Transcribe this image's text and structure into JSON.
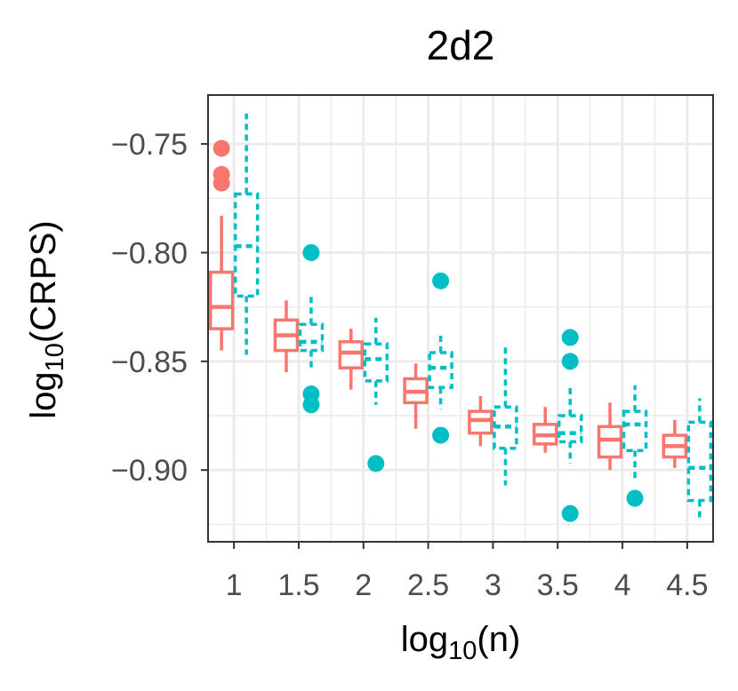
{
  "chart_data": {
    "type": "boxplot",
    "title": "2d2",
    "xlabel": "log10(n)",
    "ylabel": "log10(CRPS)",
    "xlabel_parts": {
      "base": "log",
      "sub": "10",
      "rest": "(n)"
    },
    "ylabel_parts": {
      "base": "log",
      "sub": "10",
      "rest": "(CRPS)"
    },
    "x_ticks": [
      1,
      1.5,
      2,
      2.5,
      3,
      3.5,
      4,
      4.5
    ],
    "x_tick_labels": [
      "1",
      "1.5",
      "2",
      "2.5",
      "3",
      "3.5",
      "4",
      "4.5"
    ],
    "y_ticks": [
      -0.75,
      -0.8,
      -0.85,
      -0.9
    ],
    "y_tick_labels": [
      "−0.75",
      "−0.80",
      "−0.85",
      "−0.90"
    ],
    "xlim": [
      0.8,
      4.7
    ],
    "ylim": [
      -0.933,
      -0.7275
    ],
    "grid": true,
    "series": [
      {
        "name": "series_1",
        "color": "#F8766D",
        "linestyle": "solid",
        "boxes": [
          {
            "x": 1.0,
            "whisker_low": -0.845,
            "q1": -0.835,
            "median": -0.825,
            "q3": -0.809,
            "whisker_high": -0.783,
            "outliers": [
              -0.752,
              -0.764,
              -0.768
            ]
          },
          {
            "x": 1.5,
            "whisker_low": -0.855,
            "q1": -0.845,
            "median": -0.838,
            "q3": -0.831,
            "whisker_high": -0.822,
            "outliers": []
          },
          {
            "x": 2.0,
            "whisker_low": -0.863,
            "q1": -0.853,
            "median": -0.846,
            "q3": -0.841,
            "whisker_high": -0.835,
            "outliers": []
          },
          {
            "x": 2.5,
            "whisker_low": -0.881,
            "q1": -0.869,
            "median": -0.864,
            "q3": -0.858,
            "whisker_high": -0.851,
            "outliers": []
          },
          {
            "x": 3.0,
            "whisker_low": -0.889,
            "q1": -0.883,
            "median": -0.877,
            "q3": -0.873,
            "whisker_high": -0.866,
            "outliers": []
          },
          {
            "x": 3.5,
            "whisker_low": -0.892,
            "q1": -0.888,
            "median": -0.884,
            "q3": -0.879,
            "whisker_high": -0.871,
            "outliers": []
          },
          {
            "x": 4.0,
            "whisker_low": -0.9,
            "q1": -0.894,
            "median": -0.886,
            "q3": -0.88,
            "whisker_high": -0.869,
            "outliers": []
          },
          {
            "x": 4.5,
            "whisker_low": -0.899,
            "q1": -0.894,
            "median": -0.889,
            "q3": -0.884,
            "whisker_high": -0.877,
            "outliers": []
          }
        ]
      },
      {
        "name": "series_2",
        "color": "#00BFC4",
        "linestyle": "dashed",
        "boxes": [
          {
            "x": 1.0,
            "whisker_low": -0.847,
            "q1": -0.82,
            "median": -0.797,
            "q3": -0.773,
            "whisker_high": -0.736,
            "outliers": []
          },
          {
            "x": 1.5,
            "whisker_low": -0.853,
            "q1": -0.845,
            "median": -0.841,
            "q3": -0.833,
            "whisker_high": -0.82,
            "outliers": [
              -0.8,
              -0.865,
              -0.87
            ]
          },
          {
            "x": 2.0,
            "whisker_low": -0.87,
            "q1": -0.859,
            "median": -0.849,
            "q3": -0.842,
            "whisker_high": -0.83,
            "outliers": [
              -0.897
            ]
          },
          {
            "x": 2.5,
            "whisker_low": -0.872,
            "q1": -0.862,
            "median": -0.853,
            "q3": -0.846,
            "whisker_high": -0.838,
            "outliers": [
              -0.813,
              -0.884
            ]
          },
          {
            "x": 3.0,
            "whisker_low": -0.907,
            "q1": -0.89,
            "median": -0.88,
            "q3": -0.871,
            "whisker_high": -0.842,
            "outliers": []
          },
          {
            "x": 3.5,
            "whisker_low": -0.897,
            "q1": -0.887,
            "median": -0.883,
            "q3": -0.875,
            "whisker_high": -0.862,
            "outliers": [
              -0.839,
              -0.85,
              -0.92
            ]
          },
          {
            "x": 4.0,
            "whisker_low": -0.905,
            "q1": -0.891,
            "median": -0.879,
            "q3": -0.873,
            "whisker_high": -0.861,
            "outliers": [
              -0.913
            ]
          },
          {
            "x": 4.5,
            "whisker_low": -0.923,
            "q1": -0.914,
            "median": -0.899,
            "q3": -0.878,
            "whisker_high": -0.867,
            "outliers": []
          }
        ]
      }
    ]
  }
}
